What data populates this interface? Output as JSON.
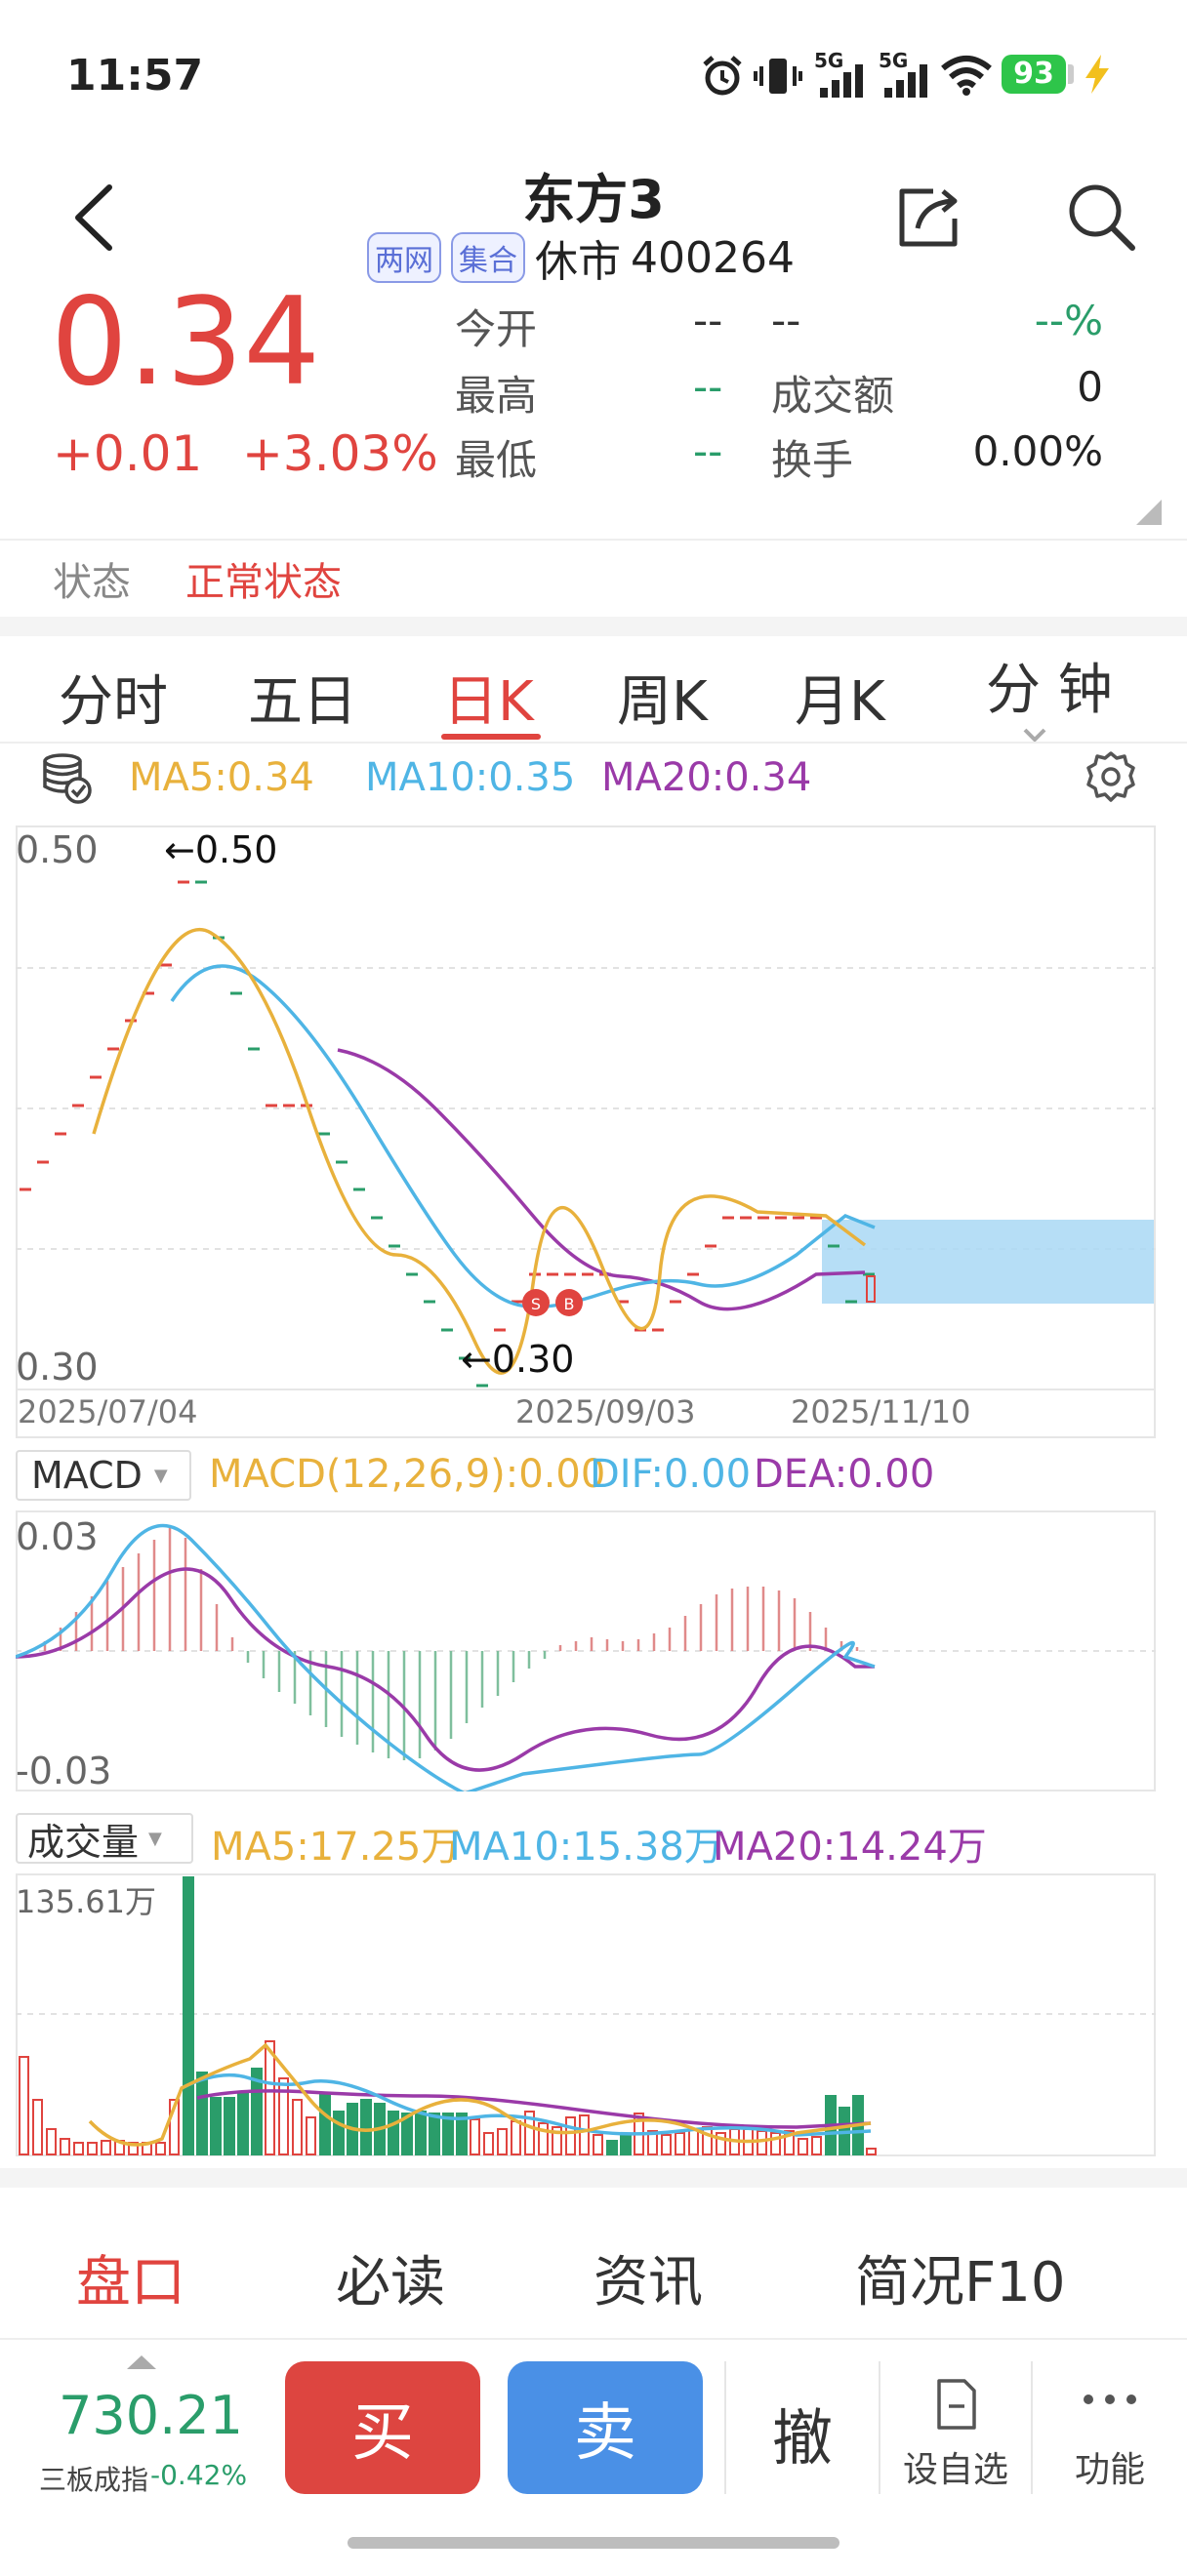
{
  "status_bar": {
    "time": "11:57",
    "net1": "5G",
    "net2": "5G",
    "battery": "93"
  },
  "header": {
    "title": "东方3",
    "badge1": "两网",
    "badge2": "集合",
    "market_status": "休市",
    "code": "400264"
  },
  "quote": {
    "price": "0.34",
    "change": "+0.01",
    "change_pct": "+3.03%",
    "open_label": "今开",
    "open_value": "--",
    "open_extra1": "--",
    "open_extra2": "--%",
    "high_label": "最高",
    "high_value": "--",
    "amount_label": "成交额",
    "amount_value": "0",
    "low_label": "最低",
    "low_value": "--",
    "turnover_label": "换手",
    "turnover_value": "0.00%"
  },
  "state": {
    "label": "状态",
    "value": "正常状态"
  },
  "tabs": [
    "分时",
    "五日",
    "日K",
    "周K",
    "月K",
    "分 钟"
  ],
  "kline": {
    "ma5": "MA5:0.34",
    "ma10": "MA10:0.35",
    "ma20": "MA20:0.34",
    "y_top": "0.50",
    "y_bottom": "0.30",
    "max_marker": "←0.50",
    "min_marker": "←0.30",
    "dates": [
      "2025/07/04",
      "2025/09/03",
      "2025/11/10"
    ],
    "sell_mark": "S",
    "buy_mark": "B"
  },
  "macd": {
    "selector": "MACD",
    "macd": "MACD(12,26,9):0.00",
    "dif": "DIF:0.00",
    "dea": "DEA:0.00",
    "y_top": "0.03",
    "y_bottom": "-0.03"
  },
  "volume": {
    "selector": "成交量",
    "ma5": "MA5:17.25万",
    "ma10": "MA10:15.38万",
    "ma20": "MA20:14.24万",
    "y_top": "135.61万"
  },
  "bottom_tabs": [
    "盘口",
    "必读",
    "资讯",
    "简况F10"
  ],
  "footer": {
    "index_value": "730.21",
    "index_name": "三板成指",
    "index_change": "-0.42%",
    "buy": "买",
    "sell": "卖",
    "cancel": "撤",
    "watchlist": "设自选",
    "more": "功能"
  },
  "colors": {
    "up": "#e0443f",
    "down": "#2a9d6a",
    "ma5": "#e8b13c",
    "ma10": "#4fb5e5",
    "ma20": "#9a3aa8",
    "buy_button": "#dd4540",
    "sell_button": "#4a90e6"
  }
}
